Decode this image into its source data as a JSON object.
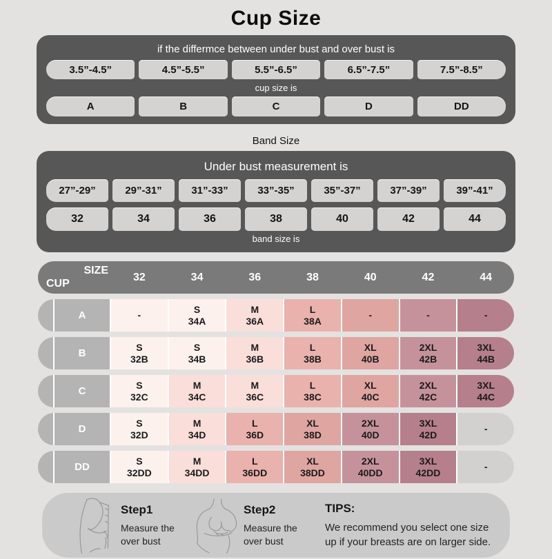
{
  "page": {
    "title": "Cup Size"
  },
  "cup_panel": {
    "header": "if the differmce between under bust and over bust is",
    "ranges": [
      "3.5”-4.5”",
      "4.5”-5.5”",
      "5.5”-6.5”",
      "6.5”-7.5”",
      "7.5”-8.5”"
    ],
    "mid_label": "cup size is",
    "cups": [
      "A",
      "B",
      "C",
      "D",
      "DD"
    ]
  },
  "band_section": {
    "title": "Band Size",
    "header": "Under bust measurement is",
    "ranges": [
      "27”-29”",
      "29”-31”",
      "31”-33”",
      "33”-35”",
      "35”-37”",
      "37”-39”",
      "39”-41”"
    ],
    "bands": [
      "32",
      "34",
      "36",
      "38",
      "40",
      "42",
      "44"
    ],
    "footer_label": "band size is"
  },
  "matrix": {
    "corner": {
      "top": "SIZE",
      "bottom": "CUP"
    },
    "columns": [
      "32",
      "34",
      "36",
      "38",
      "40",
      "42",
      "44"
    ],
    "palette": {
      "s": "#fdf1ee",
      "m": "#fadeda",
      "l": "#eab2ad",
      "xl": "#dfa5a1",
      "xxl": "#c5929b",
      "xxxl": "#b5808b",
      "na": "#d2d1d0"
    },
    "rows": [
      {
        "cup": "A",
        "cells": [
          {
            "size": "-",
            "code": "",
            "color": "s"
          },
          {
            "size": "S",
            "code": "34A",
            "color": "s"
          },
          {
            "size": "M",
            "code": "36A",
            "color": "m"
          },
          {
            "size": "L",
            "code": "38A",
            "color": "l"
          },
          {
            "size": "-",
            "code": "",
            "color": "xl"
          },
          {
            "size": "-",
            "code": "",
            "color": "xxl"
          },
          {
            "size": "-",
            "code": "",
            "color": "xxxl"
          }
        ]
      },
      {
        "cup": "B",
        "cells": [
          {
            "size": "S",
            "code": "32B",
            "color": "s"
          },
          {
            "size": "S",
            "code": "34B",
            "color": "s"
          },
          {
            "size": "M",
            "code": "36B",
            "color": "m"
          },
          {
            "size": "L",
            "code": "38B",
            "color": "l"
          },
          {
            "size": "XL",
            "code": "40B",
            "color": "xl"
          },
          {
            "size": "2XL",
            "code": "42B",
            "color": "xxl"
          },
          {
            "size": "3XL",
            "code": "44B",
            "color": "xxxl"
          }
        ]
      },
      {
        "cup": "C",
        "cells": [
          {
            "size": "S",
            "code": "32C",
            "color": "s"
          },
          {
            "size": "M",
            "code": "34C",
            "color": "m"
          },
          {
            "size": "M",
            "code": "36C",
            "color": "m"
          },
          {
            "size": "L",
            "code": "38C",
            "color": "l"
          },
          {
            "size": "XL",
            "code": "40C",
            "color": "xl"
          },
          {
            "size": "2XL",
            "code": "42C",
            "color": "xxl"
          },
          {
            "size": "3XL",
            "code": "44C",
            "color": "xxxl"
          }
        ]
      },
      {
        "cup": "D",
        "cells": [
          {
            "size": "S",
            "code": "32D",
            "color": "s"
          },
          {
            "size": "M",
            "code": "34D",
            "color": "m"
          },
          {
            "size": "L",
            "code": "36D",
            "color": "l"
          },
          {
            "size": "XL",
            "code": "38D",
            "color": "xl"
          },
          {
            "size": "2XL",
            "code": "40D",
            "color": "xxl"
          },
          {
            "size": "3XL",
            "code": "42D",
            "color": "xxxl"
          },
          {
            "size": "-",
            "code": "",
            "color": "na"
          }
        ]
      },
      {
        "cup": "DD",
        "cells": [
          {
            "size": "S",
            "code": "32DD",
            "color": "s"
          },
          {
            "size": "M",
            "code": "34DD",
            "color": "m"
          },
          {
            "size": "L",
            "code": "36DD",
            "color": "l"
          },
          {
            "size": "XL",
            "code": "38DD",
            "color": "xl"
          },
          {
            "size": "2XL",
            "code": "40DD",
            "color": "xxl"
          },
          {
            "size": "3XL",
            "code": "42DD",
            "color": "xxxl"
          },
          {
            "size": "-",
            "code": "",
            "color": "na"
          }
        ]
      }
    ]
  },
  "footer": {
    "steps": [
      {
        "title": "Step1",
        "text": "Measure the over bust"
      },
      {
        "title": "Step2",
        "text": "Measure the over bust"
      }
    ],
    "tips_title": "TIPS:",
    "tips_text": "We recommend you select one size up if your breasts are on larger side."
  }
}
